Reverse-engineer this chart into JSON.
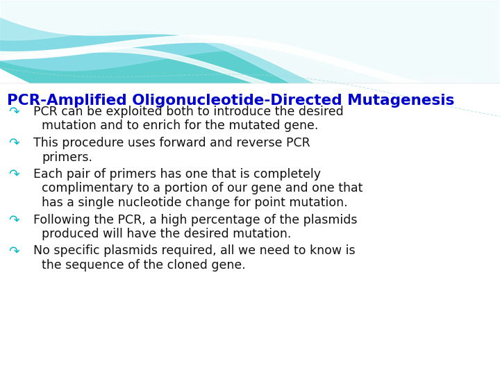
{
  "title": "PCR-Amplified Oligonucleotide-Directed Mutagenesis",
  "title_color": "#0000CC",
  "title_fontsize": 15.5,
  "bullet_color": "#00BBCC",
  "text_color": "#111111",
  "text_fontsize": 12.5,
  "background_color": "#FFFFFF",
  "bullets": [
    {
      "lines": [
        "PCR can be exploited both to introduce the desired",
        "mutation and to enrich for the mutated gene."
      ]
    },
    {
      "lines": [
        "This procedure uses forward and reverse PCR",
        "primers."
      ]
    },
    {
      "lines": [
        "Each pair of primers has one that is completely",
        "complimentary to a portion of our gene and one that",
        "has a single nucleotide change for point mutation."
      ]
    },
    {
      "lines": [
        "Following the PCR, a high percentage of the plasmids",
        "produced will have the desired mutation."
      ]
    },
    {
      "lines": [
        "No specific plasmids required, all we need to know is",
        "the sequence of the cloned gene."
      ]
    }
  ],
  "wave_colors": [
    "#5ECFCF",
    "#8ADDE0",
    "#B0ECF0",
    "#FFFFFF"
  ],
  "wave_highlight": "#FFFFFF"
}
